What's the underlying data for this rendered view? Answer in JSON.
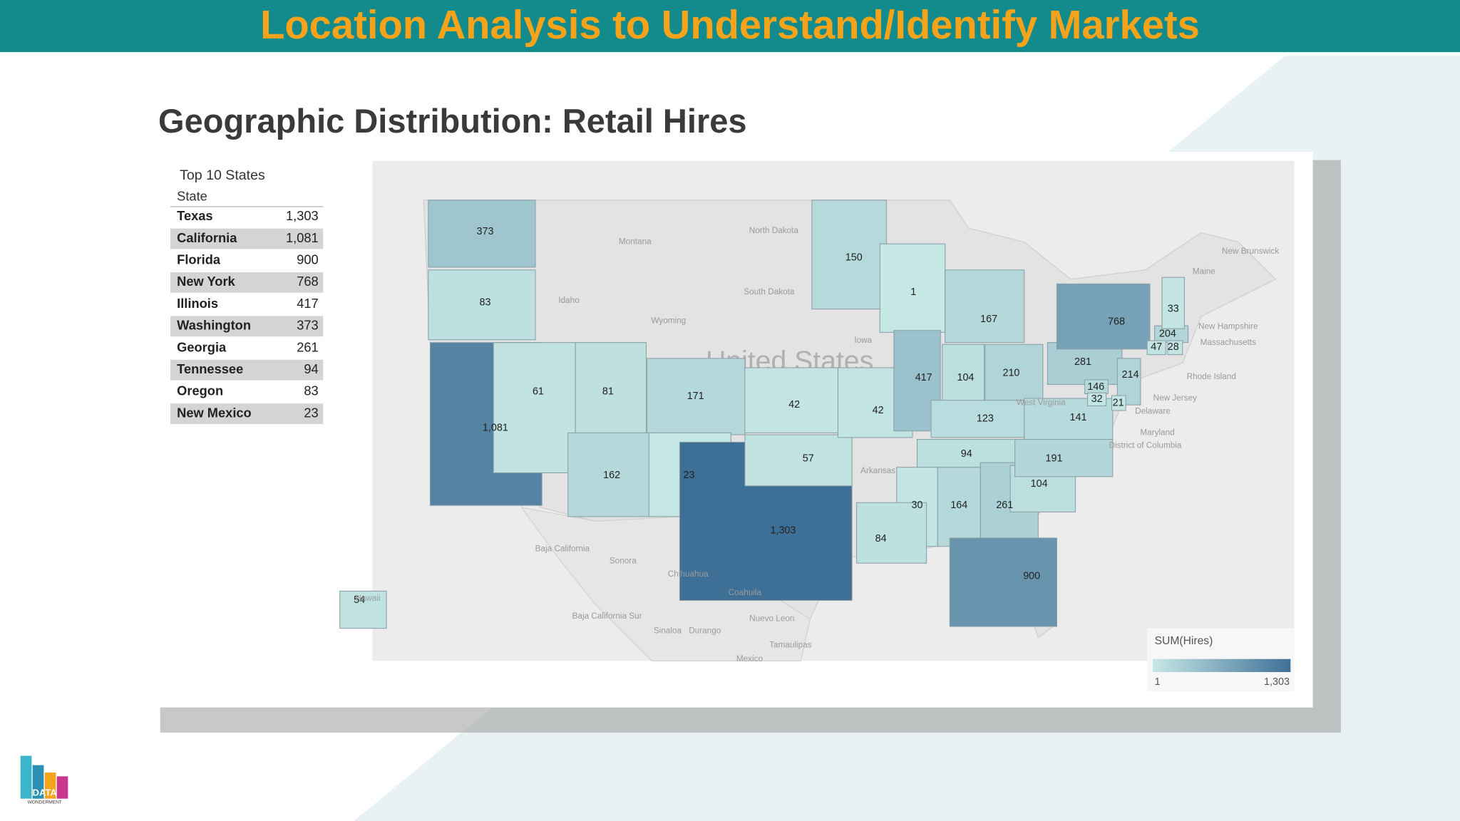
{
  "header": {
    "title": "Location Analysis to Understand/Identify Markets"
  },
  "subtitle": "Geographic Distribution: Retail Hires",
  "table": {
    "title": "Top 10 States",
    "column": "State",
    "rows": [
      [
        "Texas",
        "1,303"
      ],
      [
        "California",
        "1,081"
      ],
      [
        "Florida",
        "900"
      ],
      [
        "New York",
        "768"
      ],
      [
        "Illinois",
        "417"
      ],
      [
        "Washington",
        "373"
      ],
      [
        "Georgia",
        "261"
      ],
      [
        "Tennessee",
        "94"
      ],
      [
        "Oregon",
        "83"
      ],
      [
        "New Mexico",
        "23"
      ]
    ]
  },
  "map": {
    "states": [
      373,
      83,
      {
        "value": 1081,
        "label": "1,081"
      },
      61,
      81,
      171,
      162,
      23,
      {
        "value": 1303,
        "label": "1,303"
      },
      57,
      42,
      42,
      150,
      1,
      167,
      417,
      104,
      210,
      123,
      94,
      30,
      164,
      261,
      900,
      104,
      191,
      141,
      281,
      768,
      214,
      146,
      32,
      21,
      204,
      47,
      28,
      33,
      84,
      54
    ],
    "country_label": "United States",
    "places": [
      "Montana",
      "North Dakota",
      "South Dakota",
      "Wyoming",
      "Idaho",
      "Iowa",
      "Arkansas",
      "West Virginia",
      "New Hampshire",
      "Massachusetts",
      "Rhode Island",
      "New Jersey",
      "Delaware",
      "Maryland",
      "District of Columbia",
      "New Brunswick",
      "Maine",
      "Baja California",
      "Sonora",
      "Chihuahua",
      "Coahuila",
      "Nuevo Leon",
      "Baja California Sur",
      "Sinaloa",
      "Durango",
      "Tamaulipas",
      "Hawaii",
      "Mexico"
    ],
    "legend": {
      "title": "SUM(Hires)",
      "min": 1,
      "max": {
        "value": 1303,
        "label": "1,303"
      },
      "colors": [
        "#c6e8e5",
        "#3e6f96"
      ]
    }
  },
  "logo": {
    "line1": "DATA",
    "line2": "WONDERMENT"
  }
}
